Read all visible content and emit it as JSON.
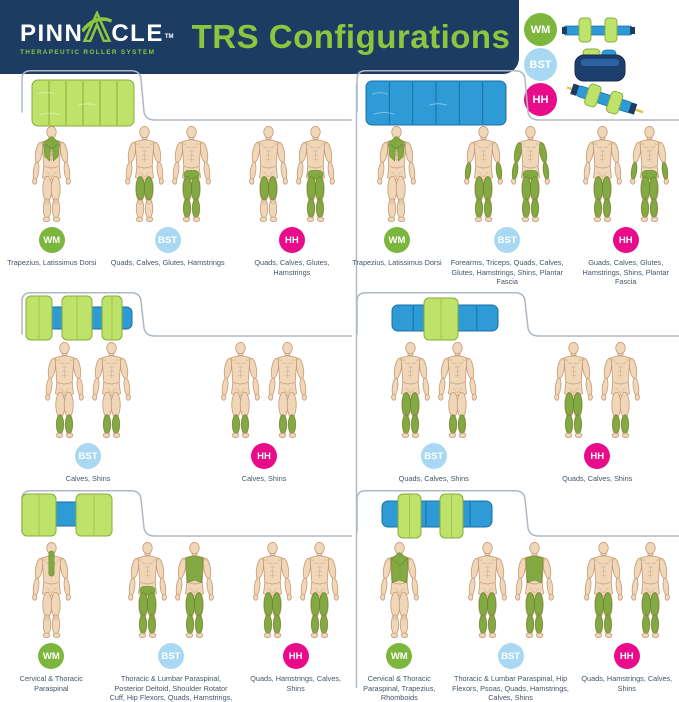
{
  "header": {
    "logo_text_1": "PINN",
    "logo_text_2": "CLE",
    "logo_tm": "TM",
    "logo_tagline": "THERAPEUTIC ROLLER SYSTEM",
    "title": "TRS Configurations"
  },
  "colors": {
    "navy": "#1c3c64",
    "accent_green": "#8cc63e",
    "wm": "#7db63c",
    "bst": "#a9d9f2",
    "hh": "#e90c8a",
    "roller_green": "#bfe36a",
    "roller_blue": "#2e9bd6",
    "panel_outline": "#aeb9c3",
    "label_text": "#44546a"
  },
  "legend": [
    {
      "code": "WM"
    },
    {
      "code": "BST"
    },
    {
      "code": "HH"
    }
  ],
  "panels": [
    {
      "id": "p1",
      "position": "top-left",
      "roller": "green-full",
      "groups": [
        {
          "badge": "WM",
          "label": "Trapezius, Latissimus Dorsi",
          "figures": [
            [
              "traps",
              "lats"
            ]
          ]
        },
        {
          "badge": "BST",
          "label": "Quads, Calves, Glutes, Hamstrings",
          "figures": [
            [
              "thighs"
            ],
            [
              "glutes",
              "thighs",
              "calves"
            ]
          ]
        },
        {
          "badge": "HH",
          "label": "Quads, Calves, Glutes, Hamstrings",
          "figures": [
            [
              "thighs"
            ],
            [
              "glutes",
              "thighs",
              "calves"
            ]
          ]
        }
      ]
    },
    {
      "id": "p2",
      "position": "top-right",
      "roller": "blue-full",
      "groups": [
        {
          "badge": "WM",
          "label": "Trapezius, Latissimus Dorsi",
          "figures": [
            [
              "traps",
              "lats"
            ]
          ]
        },
        {
          "badge": "BST",
          "label": "Forearms, Triceps, Quads, Calves, Glutes, Hamstrings, Shins, Plantar Fascia",
          "figures": [
            [
              "forearms",
              "thighs",
              "calves"
            ],
            [
              "uarms",
              "forearms",
              "glutes",
              "thighs",
              "calves"
            ]
          ]
        },
        {
          "badge": "HH",
          "label": "Guads, Calves, Glutes, Hamstrings, Shins, Plantar Fascia",
          "figures": [
            [
              "thighs",
              "calves"
            ],
            [
              "forearms",
              "glutes",
              "thighs",
              "calves"
            ]
          ]
        }
      ]
    },
    {
      "id": "p3",
      "position": "middle-left",
      "roller": "green-discs-blue-core",
      "groups": [
        {
          "badge": "BST",
          "label": "Calves, Shins",
          "figures": [
            [
              "calves"
            ],
            [
              "calves"
            ]
          ]
        },
        {
          "badge": "HH",
          "label": "Calves, Shins",
          "figures": [
            [
              "calves"
            ],
            [
              "calves"
            ]
          ]
        }
      ]
    },
    {
      "id": "p4",
      "position": "middle-right",
      "roller": "blue-one-green-band",
      "groups": [
        {
          "badge": "BST",
          "label": "Quads, Calves, Shins",
          "figures": [
            [
              "thighs",
              "calves"
            ],
            [
              "calves"
            ]
          ]
        },
        {
          "badge": "HH",
          "label": "Quads, Calves, Shins",
          "figures": [
            [
              "thighs",
              "calves"
            ],
            [
              "calves"
            ]
          ]
        }
      ]
    },
    {
      "id": "p5",
      "position": "bottom-left",
      "roller": "green-ends-blue-core",
      "groups": [
        {
          "badge": "WM",
          "label": "Cervical & Thoracic Paraspinal",
          "figures": [
            [
              "neckspine"
            ]
          ]
        },
        {
          "badge": "BST",
          "label": "Thoracic & Lumbar Paraspinal, Posterior Deltoid, Shoulder Rotator Cuff, Hip Flexors, Quads, Hamstrings, Calves, Shins",
          "figures": [
            [
              "glutes",
              "thighs",
              "calves"
            ],
            [
              "fullback",
              "thighs",
              "calves"
            ]
          ]
        },
        {
          "badge": "HH",
          "label": "Quads, Hamstrings, Calves, Shins",
          "figures": [
            [
              "thighs",
              "calves"
            ],
            [
              "thighs",
              "calves"
            ]
          ]
        }
      ]
    },
    {
      "id": "p6",
      "position": "bottom-right",
      "roller": "blue-two-green-bands",
      "groups": [
        {
          "badge": "WM",
          "label": "Cervical & Thoracic Paraspinal, Trapezius, Rhomboids",
          "figures": [
            [
              "fullback",
              "traps"
            ]
          ]
        },
        {
          "badge": "BST",
          "label": "Thoracic & Lumbar Paraspinal, Hip Flexors, Psoas, Quads, Hamstrings, Calves, Shins",
          "figures": [
            [
              "thighs",
              "calves"
            ],
            [
              "fullback",
              "thighs",
              "calves"
            ]
          ]
        },
        {
          "badge": "HH",
          "label": "Quads, Hamstrings, Calves, Shins",
          "figures": [
            [
              "thighs",
              "calves"
            ],
            [
              "thighs",
              "calves"
            ]
          ]
        }
      ]
    }
  ]
}
